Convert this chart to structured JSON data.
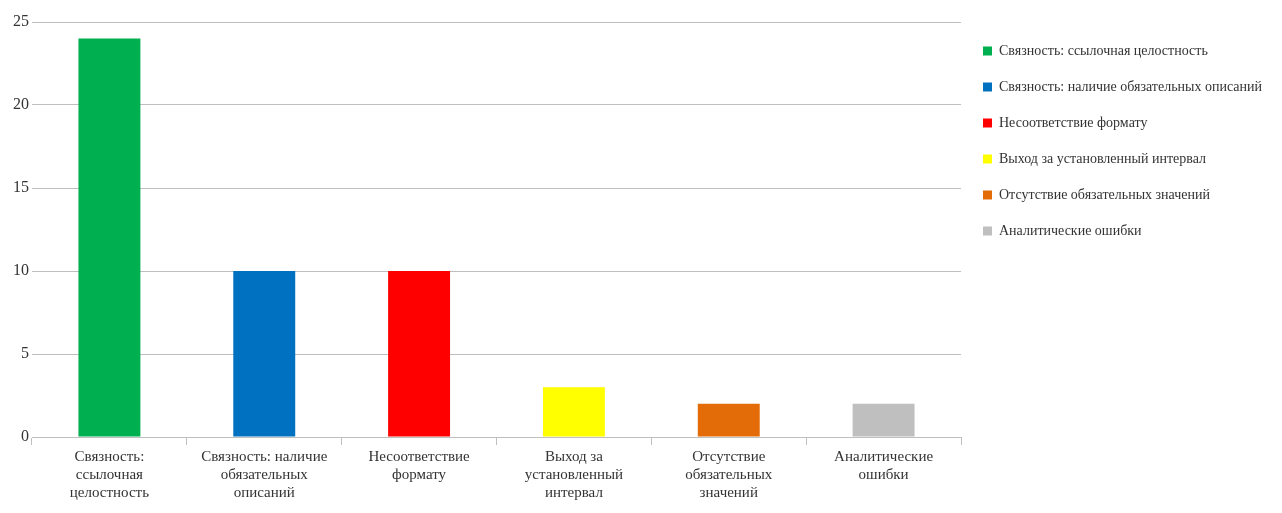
{
  "chart_data": {
    "type": "bar",
    "categories": [
      "Связность: ссылочная целостность",
      "Связность: наличие обязательных описаний",
      "Несоответствие формату",
      "Выход за установленный интервал",
      "Отсутствие обязательных значений",
      "Аналитические ошибки"
    ],
    "series": [
      {
        "name": "Связность: ссылочная целостность",
        "color": "#00b050",
        "values": [
          24,
          null,
          null,
          null,
          null,
          null
        ]
      },
      {
        "name": "Связность: наличие обязательных описаний",
        "color": "#0070c0",
        "values": [
          null,
          10,
          null,
          null,
          null,
          null
        ]
      },
      {
        "name": "Несоответствие формату",
        "color": "#ff0000",
        "values": [
          null,
          null,
          10,
          null,
          null,
          null
        ]
      },
      {
        "name": "Выход за установленный интервал",
        "color": "#ffff00",
        "values": [
          null,
          null,
          null,
          3,
          null,
          null
        ]
      },
      {
        "name": "Отсутствие обязательных значений",
        "color": "#e36c09",
        "values": [
          null,
          null,
          null,
          null,
          2,
          null
        ]
      },
      {
        "name": "Аналитические ошибки",
        "color": "#bfbfbf",
        "values": [
          null,
          null,
          null,
          null,
          null,
          2
        ]
      }
    ],
    "ylim": [
      0,
      25
    ],
    "yticks": [
      0,
      5,
      10,
      15,
      20,
      25
    ],
    "grid": "y",
    "legend": "right"
  }
}
